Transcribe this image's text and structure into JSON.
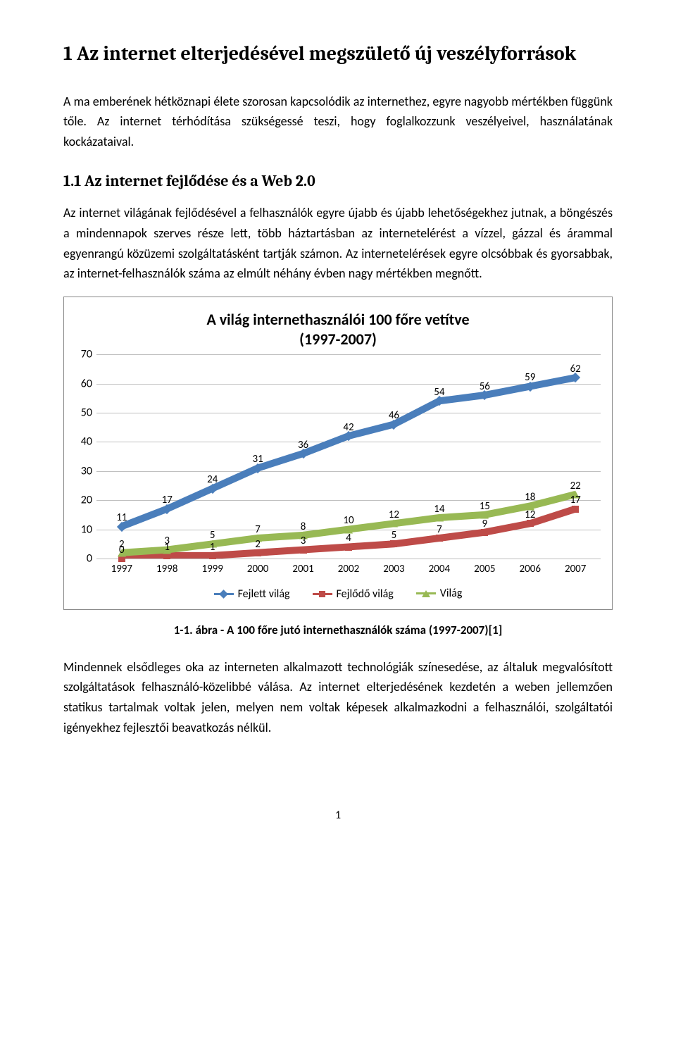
{
  "heading1": "1  Az internet elterjedésével megszülető új veszélyforrások",
  "para1": "A ma emberének hétköznapi élete szorosan kapcsolódik az internethez, egyre nagyobb mértékben függünk tőle. Az internet térhódítása szükségessé teszi, hogy foglalkozzunk veszélyeivel, használatának kockázataival.",
  "heading2": "1.1  Az internet fejlődése és a Web 2.0",
  "para2": "Az internet világának fejlődésével a felhasználók egyre újabb és újabb lehetőségekhez jutnak, a böngészés a mindennapok szerves része lett, több háztartásban az internetelérést a vízzel, gázzal és árammal egyenrangú közüzemi szolgáltatásként tartják számon. Az internetelérések egyre olcsóbbak és gyorsabbak, az internet-felhasználók száma az elmúlt néhány évben nagy mértékben megnőtt.",
  "chart": {
    "title": "A világ internethasználói 100 főre vetítve\n(1997-2007)",
    "categories": [
      "1997",
      "1998",
      "1999",
      "2000",
      "2001",
      "2002",
      "2003",
      "2004",
      "2005",
      "2006",
      "2007"
    ],
    "ymin": 0,
    "ymax": 70,
    "ytick_step": 10,
    "grid_color": "#bfbfbf",
    "bg": "#ffffff",
    "series": [
      {
        "name": "Fejlett világ",
        "color": "#4a7ebb",
        "marker": "diamond",
        "values": [
          11,
          17,
          24,
          31,
          36,
          42,
          46,
          54,
          56,
          59,
          62
        ]
      },
      {
        "name": "Fejlődő világ",
        "color": "#be4b48",
        "marker": "square",
        "values": [
          0,
          1,
          1,
          2,
          3,
          4,
          5,
          7,
          9,
          12,
          17
        ]
      },
      {
        "name": "Világ",
        "color": "#98b954",
        "marker": "triangle",
        "values": [
          2,
          3,
          5,
          7,
          8,
          10,
          12,
          14,
          15,
          18,
          22
        ]
      }
    ],
    "label_fontsize": 15,
    "line_width": 3
  },
  "caption": "1-1. ábra - A 100 főre jutó internethasználók száma (1997-2007)[1]",
  "para3": "Mindennek elsődleges oka az interneten alkalmazott technológiák színesedése, az általuk megvalósított szolgáltatások felhasználó-közelibbé válása. Az internet elterjedésének kezdetén a weben jellemzően statikus tartalmak voltak jelen, melyen nem voltak képesek alkalmazkodni a felhasználói, szolgáltatói igényekhez fejlesztői beavatkozás nélkül.",
  "pageNumber": "1"
}
